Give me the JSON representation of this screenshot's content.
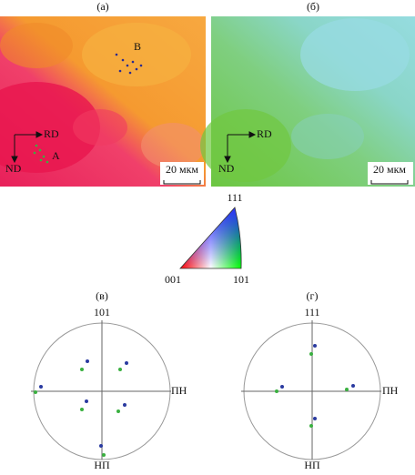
{
  "panels": [
    {
      "label": "(а)",
      "point_a": "A",
      "point_b": "B",
      "rd": "RD",
      "nd": "ND",
      "scale": "20 мкм"
    },
    {
      "label": "(б)",
      "rd": "RD",
      "nd": "ND",
      "scale": "20 мкм"
    }
  ],
  "ipf": {
    "top": "111",
    "left": "001",
    "right": "101"
  },
  "pole_figures": [
    {
      "label": "(в)",
      "top": "101",
      "right": "ПН",
      "bottom": "НП"
    },
    {
      "label": "(г)",
      "top": "111",
      "right": "ПН",
      "bottom": "НП"
    }
  ]
}
